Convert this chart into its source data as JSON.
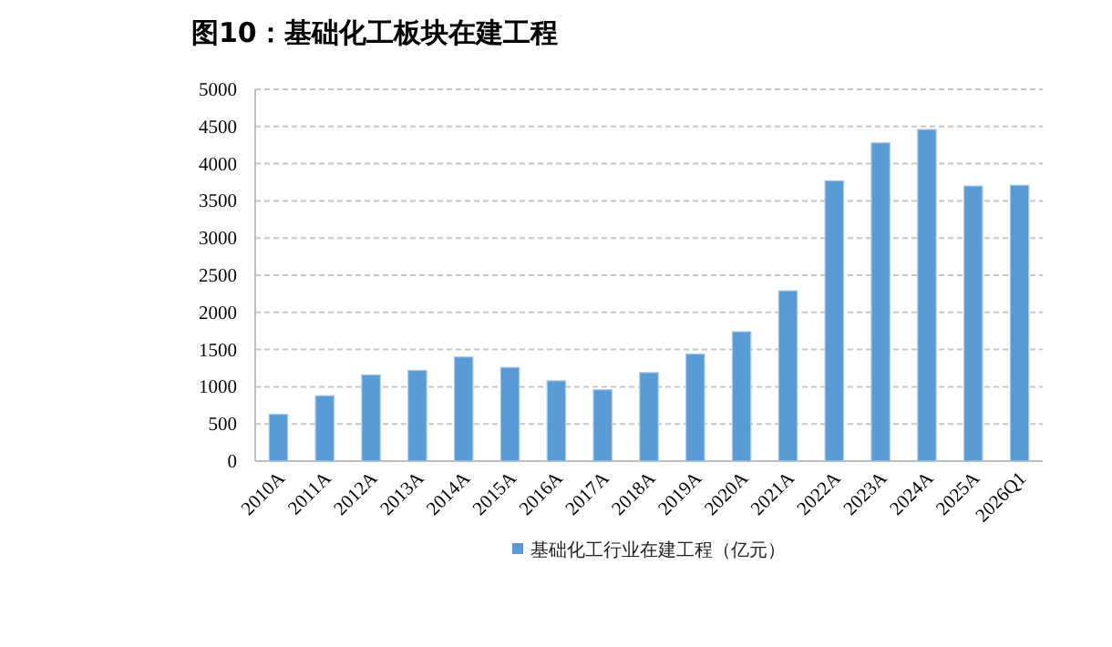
{
  "chart_data": {
    "type": "bar",
    "title": "图10：基础化工板块在建工程",
    "categories": [
      "2010A",
      "2011A",
      "2012A",
      "2013A",
      "2014A",
      "2015A",
      "2016A",
      "2017A",
      "2018A",
      "2019A",
      "2020A",
      "2021A",
      "2022A",
      "2023A",
      "2024A",
      "2025A",
      "2026Q1"
    ],
    "series": [
      {
        "name": "基础化工行业在建工程（亿元）",
        "color": "#5b9bd5",
        "values": [
          630,
          880,
          1160,
          1220,
          1400,
          1260,
          1080,
          960,
          1190,
          1440,
          1740,
          2290,
          3770,
          4280,
          4460,
          3700,
          3710
        ]
      }
    ],
    "ylim": [
      0,
      5000
    ],
    "yticks": [
      0,
      500,
      1000,
      1500,
      2000,
      2500,
      3000,
      3500,
      4000,
      4500,
      5000
    ],
    "grid": "y",
    "legend": "bottom"
  }
}
